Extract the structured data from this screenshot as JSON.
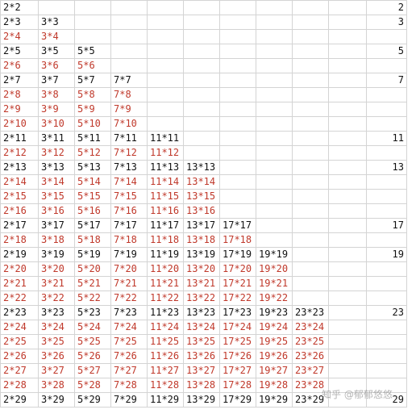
{
  "sheet": {
    "colors": {
      "odd_text": "#111111",
      "even_text": "#c0392b",
      "grid": "#d4d4d4"
    },
    "rows": [
      {
        "cells": [
          "2*2"
        ],
        "prime": "2",
        "color": "black"
      },
      {
        "cells": [
          "2*3",
          "3*3"
        ],
        "prime": "3",
        "color": "black"
      },
      {
        "cells": [
          "2*4",
          "3*4"
        ],
        "prime": "",
        "color": "red"
      },
      {
        "cells": [
          "2*5",
          "3*5",
          "5*5"
        ],
        "prime": "5",
        "color": "black"
      },
      {
        "cells": [
          "2*6",
          "3*6",
          "5*6"
        ],
        "prime": "",
        "color": "red"
      },
      {
        "cells": [
          "2*7",
          "3*7",
          "5*7",
          "7*7"
        ],
        "prime": "7",
        "color": "black"
      },
      {
        "cells": [
          "2*8",
          "3*8",
          "5*8",
          "7*8"
        ],
        "prime": "",
        "color": "red"
      },
      {
        "cells": [
          "2*9",
          "3*9",
          "5*9",
          "7*9"
        ],
        "prime": "",
        "color": "red"
      },
      {
        "cells": [
          "2*10",
          "3*10",
          "5*10",
          "7*10"
        ],
        "prime": "",
        "color": "red"
      },
      {
        "cells": [
          "2*11",
          "3*11",
          "5*11",
          "7*11",
          "11*11"
        ],
        "prime": "11",
        "color": "black"
      },
      {
        "cells": [
          "2*12",
          "3*12",
          "5*12",
          "7*12",
          "11*12"
        ],
        "prime": "",
        "color": "red"
      },
      {
        "cells": [
          "2*13",
          "3*13",
          "5*13",
          "7*13",
          "11*13",
          "13*13"
        ],
        "prime": "13",
        "color": "black"
      },
      {
        "cells": [
          "2*14",
          "3*14",
          "5*14",
          "7*14",
          "11*14",
          "13*14"
        ],
        "prime": "",
        "color": "red"
      },
      {
        "cells": [
          "2*15",
          "3*15",
          "5*15",
          "7*15",
          "11*15",
          "13*15"
        ],
        "prime": "",
        "color": "red"
      },
      {
        "cells": [
          "2*16",
          "3*16",
          "5*16",
          "7*16",
          "11*16",
          "13*16"
        ],
        "prime": "",
        "color": "red"
      },
      {
        "cells": [
          "2*17",
          "3*17",
          "5*17",
          "7*17",
          "11*17",
          "13*17",
          "17*17"
        ],
        "prime": "17",
        "color": "black"
      },
      {
        "cells": [
          "2*18",
          "3*18",
          "5*18",
          "7*18",
          "11*18",
          "13*18",
          "17*18"
        ],
        "prime": "",
        "color": "red"
      },
      {
        "cells": [
          "2*19",
          "3*19",
          "5*19",
          "7*19",
          "11*19",
          "13*19",
          "17*19",
          "19*19"
        ],
        "prime": "19",
        "color": "black"
      },
      {
        "cells": [
          "2*20",
          "3*20",
          "5*20",
          "7*20",
          "11*20",
          "13*20",
          "17*20",
          "19*20"
        ],
        "prime": "",
        "color": "red"
      },
      {
        "cells": [
          "2*21",
          "3*21",
          "5*21",
          "7*21",
          "11*21",
          "13*21",
          "17*21",
          "19*21"
        ],
        "prime": "",
        "color": "red"
      },
      {
        "cells": [
          "2*22",
          "3*22",
          "5*22",
          "7*22",
          "11*22",
          "13*22",
          "17*22",
          "19*22"
        ],
        "prime": "",
        "color": "red"
      },
      {
        "cells": [
          "2*23",
          "3*23",
          "5*23",
          "7*23",
          "11*23",
          "13*23",
          "17*23",
          "19*23",
          "23*23"
        ],
        "prime": "23",
        "color": "black"
      },
      {
        "cells": [
          "2*24",
          "3*24",
          "5*24",
          "7*24",
          "11*24",
          "13*24",
          "17*24",
          "19*24",
          "23*24"
        ],
        "prime": "",
        "color": "red"
      },
      {
        "cells": [
          "2*25",
          "3*25",
          "5*25",
          "7*25",
          "11*25",
          "13*25",
          "17*25",
          "19*25",
          "23*25"
        ],
        "prime": "",
        "color": "red"
      },
      {
        "cells": [
          "2*26",
          "3*26",
          "5*26",
          "7*26",
          "11*26",
          "13*26",
          "17*26",
          "19*26",
          "23*26"
        ],
        "prime": "",
        "color": "red"
      },
      {
        "cells": [
          "2*27",
          "3*27",
          "5*27",
          "7*27",
          "11*27",
          "13*27",
          "17*27",
          "19*27",
          "23*27"
        ],
        "prime": "",
        "color": "red"
      },
      {
        "cells": [
          "2*28",
          "3*28",
          "5*28",
          "7*28",
          "11*28",
          "13*28",
          "17*28",
          "19*28",
          "23*28"
        ],
        "prime": "",
        "color": "red"
      },
      {
        "cells": [
          "2*29",
          "3*29",
          "5*29",
          "7*29",
          "11*29",
          "13*29",
          "17*29",
          "19*29",
          "23*29"
        ],
        "prime": "29",
        "color": "black"
      }
    ]
  },
  "watermark": {
    "text": "知乎 @郁郁悠悠"
  }
}
